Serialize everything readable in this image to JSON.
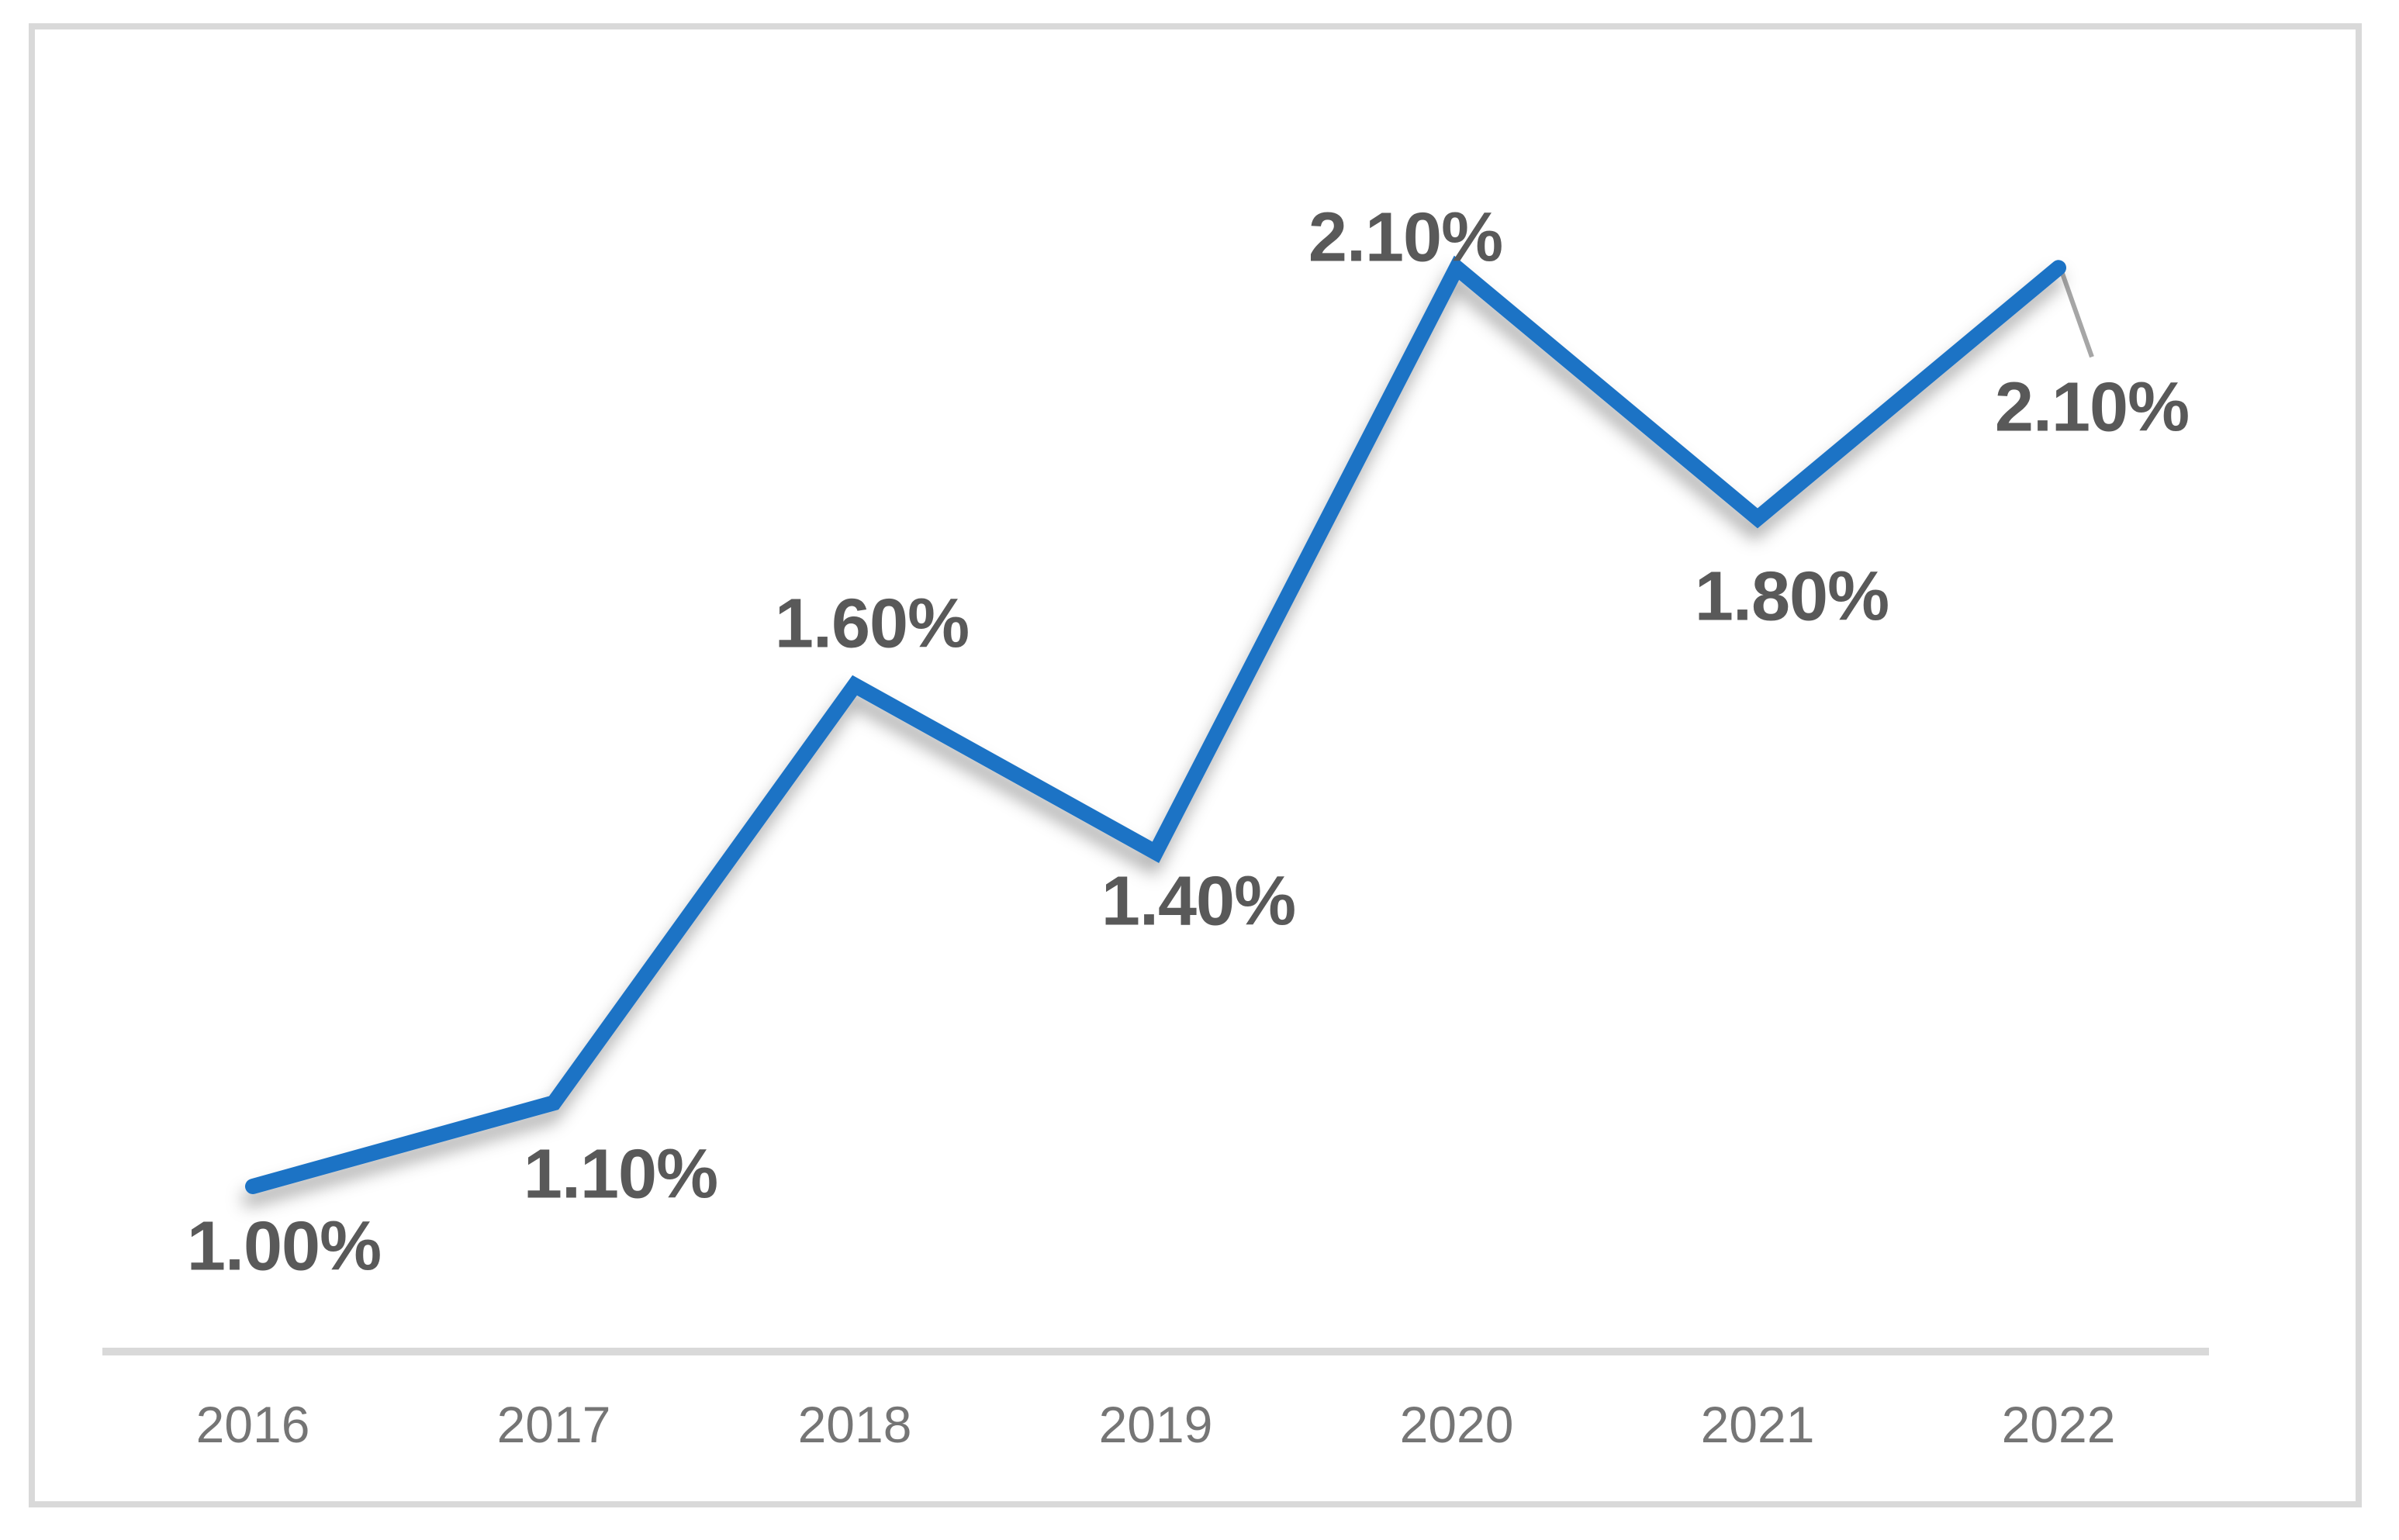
{
  "chart_data": {
    "type": "line",
    "title": "",
    "xlabel": "",
    "ylabel": "",
    "categories": [
      "2016",
      "2017",
      "2018",
      "2019",
      "2020",
      "2021",
      "2022"
    ],
    "series": [
      {
        "name": "",
        "values": [
          1.0,
          1.1,
          1.6,
          1.4,
          2.1,
          1.8,
          2.1
        ]
      }
    ],
    "data_labels": [
      "1.00%",
      "1.10%",
      "1.60%",
      "1.40%",
      "2.10%",
      "1.80%",
      "2.10%"
    ],
    "ylim": [
      0.8,
      2.4
    ],
    "y_axis_visible": false,
    "x_axis_visible": true,
    "gridlines": false,
    "legend_position": "none",
    "last_point_has_leader_line": true
  },
  "colors": {
    "line": "#1E73C5",
    "line_shadow": "#000000",
    "data_label_text": "#595959",
    "axis_label_text": "#757575",
    "axis_line": "#D9D9D9",
    "frame_border": "#D9D9D9",
    "leader_line": "#A6A6A6",
    "background": "#FFFFFF"
  }
}
